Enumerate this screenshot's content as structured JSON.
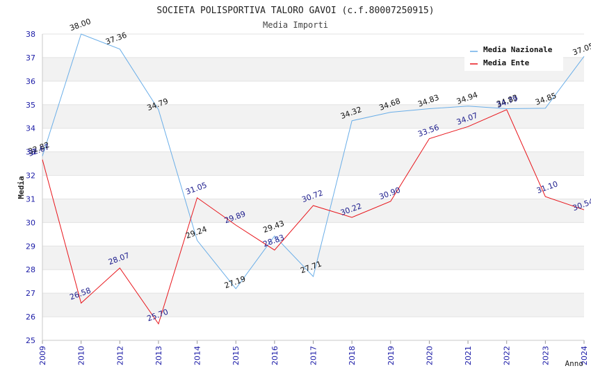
{
  "chart_data": {
    "type": "line",
    "title": "SOCIETA POLISPORTIVA TALORO GAVOI (c.f.80007250915)",
    "subtitle": "Media Importi",
    "xlabel": "Anno",
    "ylabel": "Media",
    "ylim": [
      25,
      38
    ],
    "yticks": [
      "25",
      "26",
      "27",
      "28",
      "29",
      "30",
      "31",
      "32",
      "33",
      "34",
      "35",
      "36",
      "37",
      "38"
    ],
    "categories": [
      "2009",
      "2010",
      "2012",
      "2013",
      "2014",
      "2015",
      "2016",
      "2017",
      "2018",
      "2019",
      "2020",
      "2021",
      "2022",
      "2023",
      "2024"
    ],
    "series": [
      {
        "name": "Media Nazionale",
        "color": "#6aaee8",
        "values": [
          32.82,
          38.0,
          37.36,
          34.79,
          29.24,
          27.19,
          29.43,
          27.71,
          34.32,
          34.68,
          34.83,
          34.94,
          34.83,
          34.85,
          37.05
        ],
        "labels": [
          "32.82",
          "38.00",
          "37.36",
          "34.79",
          "29.24",
          "27.19",
          "29.43",
          "27.71",
          "34.32",
          "34.68",
          "34.83",
          "34.94",
          "34.83",
          "34.85",
          "37.05"
        ]
      },
      {
        "name": "Media Ente",
        "color": "#e8141a",
        "values": [
          32.67,
          26.58,
          28.07,
          25.7,
          31.05,
          29.89,
          28.83,
          30.72,
          30.22,
          30.9,
          33.56,
          34.07,
          34.79,
          31.1,
          30.54
        ],
        "labels": [
          "32.67",
          "26.58",
          "28.07",
          "25.70",
          "31.05",
          "29.89",
          "28.83",
          "30.72",
          "30.22",
          "30.90",
          "33.56",
          "34.07",
          "34.79",
          "31.10",
          "30.54"
        ]
      }
    ],
    "legend": "top-right",
    "grid": true
  }
}
